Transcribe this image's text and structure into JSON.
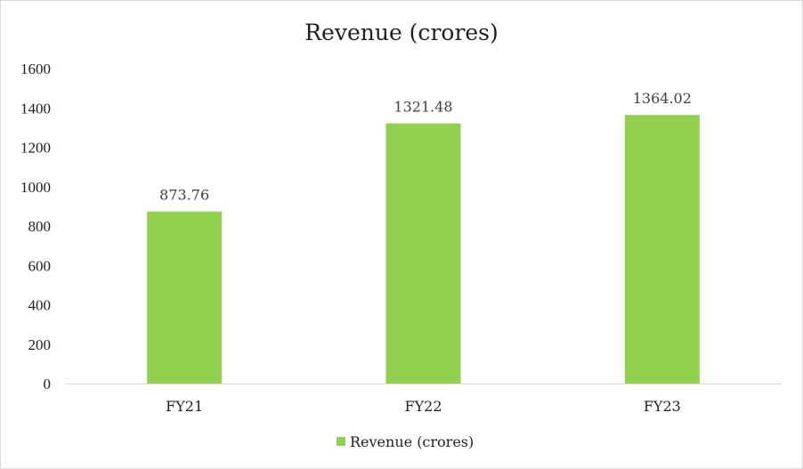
{
  "chart_data": {
    "type": "bar",
    "title": "Revenue (crores)",
    "categories": [
      "FY21",
      "FY22",
      "FY23"
    ],
    "series": [
      {
        "name": "Revenue (crores)",
        "values": [
          873.76,
          1321.48,
          1364.02
        ],
        "color": "#92d050"
      }
    ],
    "data_labels": [
      "873.76",
      "1321.48",
      "1364.02"
    ],
    "yticks": [
      "0",
      "200",
      "400",
      "600",
      "800",
      "1000",
      "1200",
      "1400",
      "1600"
    ],
    "ylim": [
      0,
      1600
    ],
    "xlabel": "",
    "ylabel": "",
    "grid": false,
    "legend_position": "bottom"
  }
}
